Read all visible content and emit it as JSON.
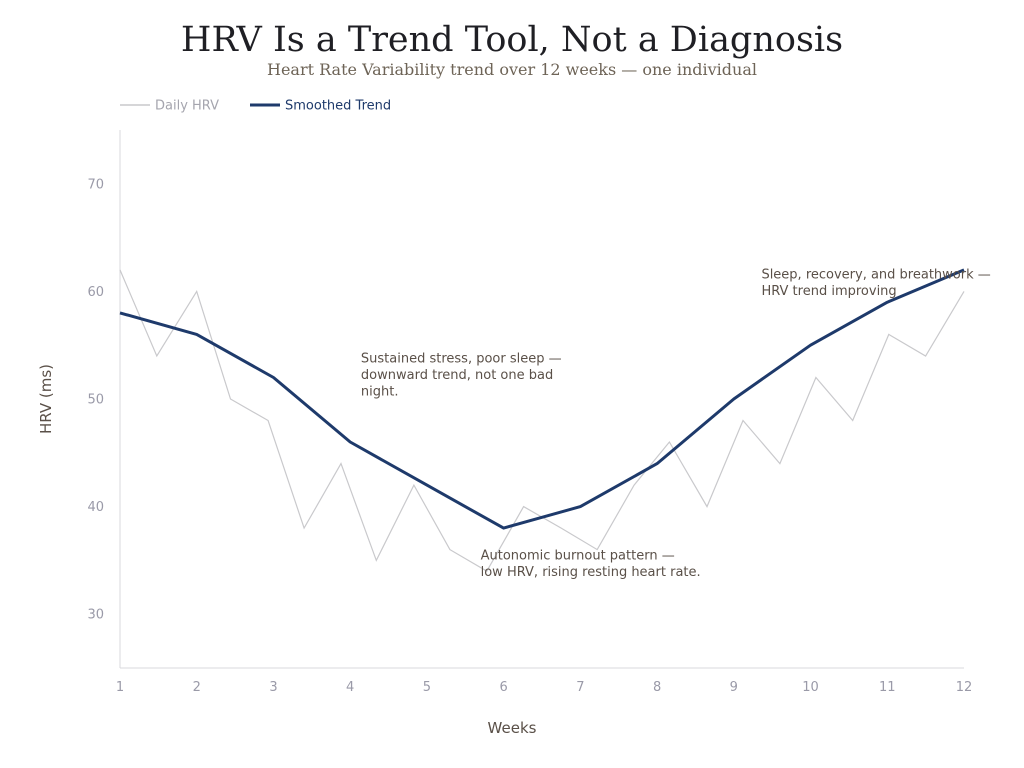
{
  "chart_data": {
    "type": "line",
    "title": "HRV Is a Trend Tool, Not a Diagnosis",
    "subtitle": "Heart Rate Variability trend over 12 weeks — one individual",
    "xlabel": "Weeks",
    "ylabel": "HRV (ms)",
    "xlim": [
      1,
      12
    ],
    "ylim": [
      25,
      75
    ],
    "x_ticks": [
      "1",
      "2",
      "3",
      "4",
      "5",
      "6",
      "7",
      "8",
      "9",
      "10",
      "11",
      "12"
    ],
    "y_ticks": [
      "30",
      "40",
      "50",
      "60",
      "70"
    ],
    "grid": false,
    "legend_position": "top-left",
    "series": [
      {
        "name": "Daily HRV",
        "color": "#c9c9cc",
        "x": [
          1,
          1.48,
          2,
          2.44,
          2.93,
          3.4,
          3.88,
          4.34,
          4.83,
          5.3,
          5.78,
          6.26,
          6.75,
          7.22,
          7.7,
          8.16,
          8.65,
          9.12,
          9.6,
          10.07,
          10.55,
          11.02,
          11.5,
          12
        ],
        "y": [
          62,
          54,
          60,
          50,
          48,
          38,
          44,
          35,
          42,
          36,
          34,
          40,
          38,
          36,
          42,
          46,
          40,
          48,
          44,
          52,
          48,
          56,
          54,
          60
        ]
      },
      {
        "name": "Smoothed Trend",
        "color": "#1e3a6b",
        "x": [
          1,
          2,
          3,
          4,
          5,
          6,
          7,
          8,
          9,
          10,
          11,
          12
        ],
        "y": [
          58,
          56,
          52,
          46,
          42,
          38,
          40,
          44,
          50,
          55,
          59,
          62
        ]
      }
    ],
    "annotations": [
      {
        "lines": [
          "Sustained stress, poor sleep —",
          "downward trend, not one bad",
          "night."
        ],
        "x": 4.14,
        "y": 53.4
      },
      {
        "lines": [
          "Autonomic burnout pattern —",
          "low HRV, rising resting heart rate."
        ],
        "x": 5.7,
        "y": 35.1
      },
      {
        "lines": [
          "Sleep, recovery, and breathwork —",
          "HRV trend improving"
        ],
        "x": 9.36,
        "y": 61.2
      }
    ]
  }
}
